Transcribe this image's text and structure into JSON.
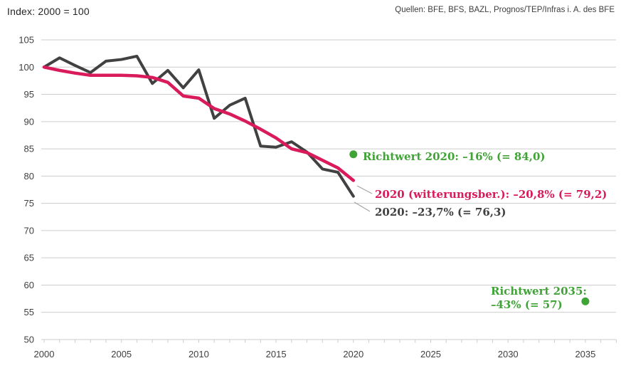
{
  "header": {
    "index_label": "Index: 2000 = 100",
    "sources": "Quellen: BFE, BFS, BAZL, Prognos/TEP/Infras i. A. des BFE"
  },
  "annotations": {
    "richtwert_2020": "Richtwert 2020: –16% (= 84,0)",
    "corrected_2020": "2020 (witterungsber.): –20,8% (= 79,2)",
    "raw_2020": "2020: –23,7% (= 76,3)",
    "richtwert_2035_line1": "Richtwert 2035:",
    "richtwert_2035_line2": "–43% (= 57)"
  },
  "colors": {
    "raw_line": "#414141",
    "corrected_line": "#d91a5b",
    "target_green": "#3fa435",
    "grid": "#cccccc",
    "axis_text": "#3f3f3f",
    "leader": "#a6a6a6"
  },
  "chart_data": {
    "type": "line",
    "title": "Index: 2000 = 100",
    "subtitle": "Quellen: BFE, BFS, BAZL, Prognos/TEP/Infras i. A. des BFE",
    "xlabel": "",
    "ylabel": "Index (2000 = 100)",
    "xlim": [
      2000,
      2037
    ],
    "ylim": [
      50,
      105
    ],
    "grid": true,
    "legend_position": "direct-labels",
    "y_ticks": [
      105,
      100,
      95,
      90,
      85,
      80,
      75,
      70,
      65,
      60,
      55,
      50
    ],
    "x_ticks_labeled": [
      2000,
      2005,
      2010,
      2015,
      2020,
      2025,
      2030,
      2035
    ],
    "x_minor_tick_every_year": true,
    "x": [
      2000,
      2001,
      2002,
      2003,
      2004,
      2005,
      2006,
      2007,
      2008,
      2009,
      2010,
      2011,
      2012,
      2013,
      2014,
      2015,
      2016,
      2017,
      2018,
      2019,
      2020
    ],
    "series": [
      {
        "name": "2020: –23,7% (= 76,3)",
        "color": "#414141",
        "width": 4,
        "values": [
          100.0,
          101.7,
          100.3,
          99.0,
          101.1,
          101.4,
          102.0,
          97.0,
          99.4,
          96.2,
          99.5,
          90.6,
          93.0,
          94.3,
          85.5,
          85.3,
          86.3,
          84.4,
          81.3,
          80.7,
          76.3
        ]
      },
      {
        "name": "2020 (witterungsber.): –20,8% (= 79,2)",
        "color": "#d91a5b",
        "width": 4.5,
        "values": [
          100.0,
          99.4,
          98.9,
          98.5,
          98.5,
          98.5,
          98.4,
          98.1,
          97.2,
          94.7,
          94.3,
          92.4,
          91.4,
          90.1,
          88.6,
          87.0,
          85.0,
          84.3,
          82.9,
          81.5,
          79.2
        ]
      }
    ],
    "targets": [
      {
        "label": "Richtwert 2020: –16% (= 84,0)",
        "year": 2020,
        "value": 84.0,
        "color": "#3fa435"
      },
      {
        "label": "Richtwert 2035: –43% (= 57)",
        "year": 2035,
        "value": 57,
        "color": "#3fa435"
      }
    ]
  }
}
